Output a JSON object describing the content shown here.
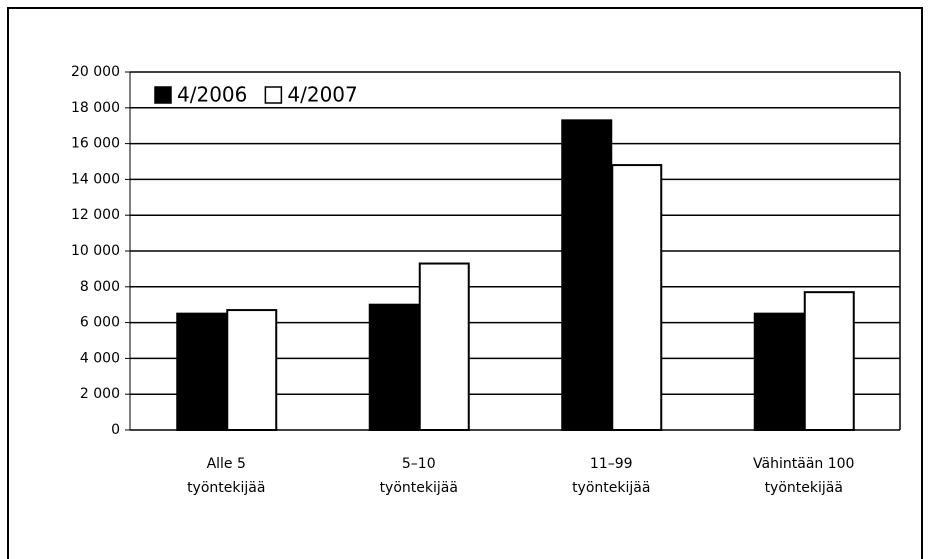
{
  "chart_data": {
    "type": "bar",
    "categories": [
      "Alle 5\ntyöntekijää",
      "5–10\ntyöntekijää",
      "11–99\ntyöntekijää",
      "Vähintään 100\ntyöntekijää"
    ],
    "series": [
      {
        "name": "4/2006",
        "color": "#000000",
        "values": [
          6500,
          7000,
          17300,
          6500
        ]
      },
      {
        "name": "4/2007",
        "color": "#ffffff",
        "values": [
          6700,
          9300,
          14800,
          7700
        ]
      }
    ],
    "ylim": [
      0,
      20000
    ],
    "yticks": [
      0,
      {
        "value": 2000,
        "label": "2 000"
      },
      {
        "value": 4000,
        "label": "4 000"
      },
      {
        "value": 6000,
        "label": "6 000"
      },
      {
        "value": 8000,
        "label": "8 000"
      },
      {
        "value": 10000,
        "label": "10 000"
      },
      {
        "value": 12000,
        "label": "12 000"
      },
      {
        "value": 14000,
        "label": "14 000"
      },
      {
        "value": 16000,
        "label": "16 000"
      },
      {
        "value": 18000,
        "label": "18 000"
      },
      {
        "value": 20000,
        "label": "20 000"
      }
    ],
    "grid": true,
    "legend": "top-left"
  }
}
